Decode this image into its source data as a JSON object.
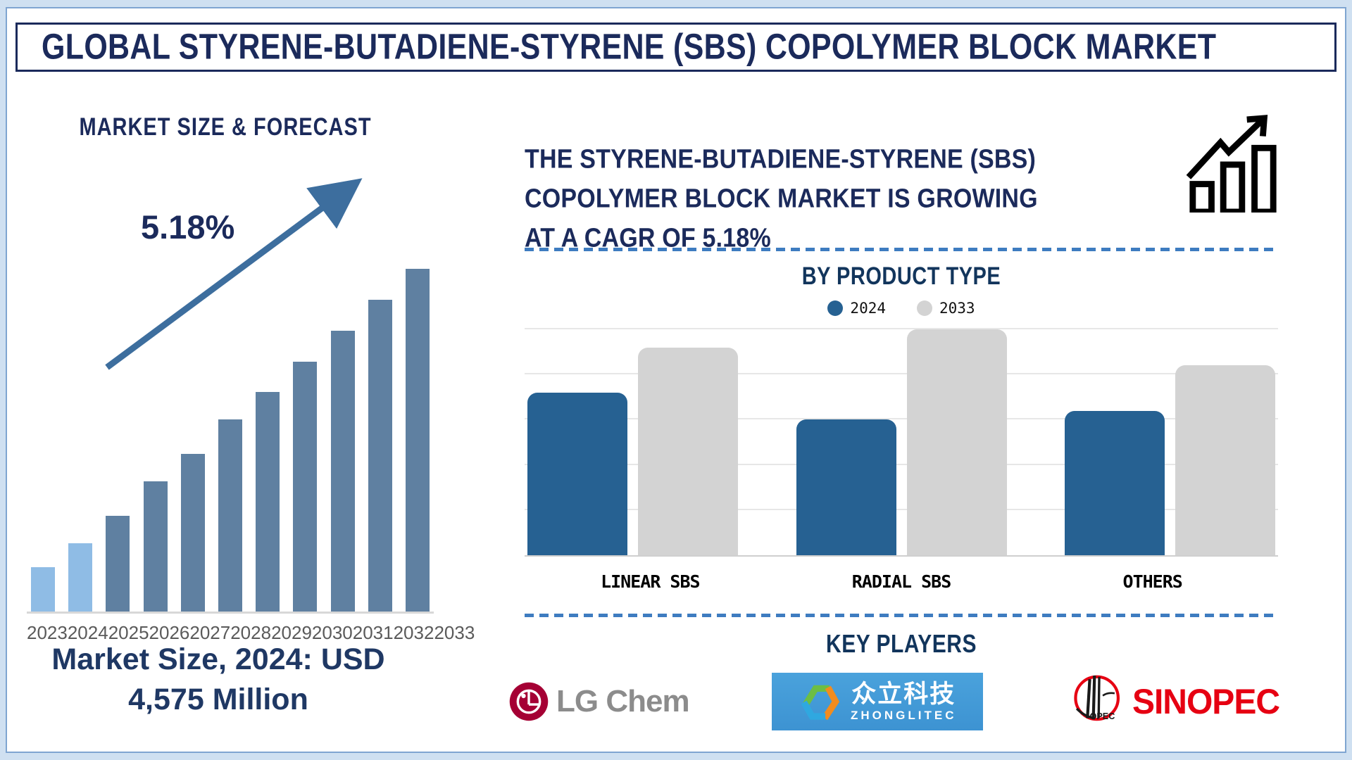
{
  "title": "GLOBAL STYRENE-BUTADIENE-STYRENE (SBS) COPOLYMER BLOCK MARKET",
  "colors": {
    "navy": "#1B2A5B",
    "caption_navy": "#1F3864",
    "light_bar": "#8FBCE5",
    "steel_bar": "#5F80A1",
    "blue_2024": "#266192",
    "gray_2033": "#D3D3D3",
    "arrow": "#3D6E9E",
    "dashed_line": "#3E7CC0",
    "lg_crimson": "#A50034",
    "lg_gray_text": "#8C8C8C",
    "zhonglitec_blue": "#42A0D9",
    "sinopec_red": "#E60012"
  },
  "left_panel": {
    "heading": "MARKET SIZE & FORECAST",
    "cagr_annotation": "5.18%",
    "market_size_caption_line1": "Market Size, 2024: USD",
    "market_size_caption_line2": "4,575 Million"
  },
  "right_panel": {
    "growth_statement_lines": [
      "THE STYRENE-BUTADIENE-STYRENE (SBS)",
      "COPOLYMER BLOCK MARKET IS GROWING",
      "AT A CAGR OF 5.18%"
    ],
    "product_chart_heading": "BY PRODUCT TYPE",
    "key_players": {
      "heading": "KEY PLAYERS",
      "logos": [
        {
          "id": "lg-chem",
          "label": "LG Chem"
        },
        {
          "id": "zhonglitec",
          "label_cn": "众立科技",
          "label_en": "ZHONGLITEC"
        },
        {
          "id": "sinopec",
          "label": "SINOPEC"
        }
      ]
    }
  },
  "chart_data": [
    {
      "id": "market-size-forecast",
      "type": "bar",
      "title": "MARKET SIZE & FORECAST",
      "categories": [
        "2023",
        "2024",
        "2025",
        "2026",
        "2027",
        "2028",
        "2029",
        "2030",
        "2031",
        "2032",
        "2033"
      ],
      "values_relative_pct": [
        13,
        20,
        28,
        38,
        46,
        56,
        64,
        73,
        82,
        91,
        100
      ],
      "bar_colors": [
        "#8FBCE5",
        "#8FBCE5",
        "#5F80A1",
        "#5F80A1",
        "#5F80A1",
        "#5F80A1",
        "#5F80A1",
        "#5F80A1",
        "#5F80A1",
        "#5F80A1",
        "#5F80A1"
      ],
      "xlabel": "",
      "ylabel": "",
      "value_axis_note": "no value axis shown; bar heights are relative (% of tallest 2033 bar)",
      "annotation": "5.18% CAGR trend arrow rising left-to-right",
      "known_point": {
        "year": "2024",
        "value": "USD 4,575 Million"
      },
      "grid": false
    },
    {
      "id": "by-product-type",
      "type": "grouped-bar",
      "title": "BY PRODUCT TYPE",
      "categories": [
        "LINEAR SBS",
        "RADIAL SBS",
        "OTHERS"
      ],
      "series": [
        {
          "name": "2024",
          "color": "#266192",
          "values_relative_pct": [
            72,
            60,
            64
          ]
        },
        {
          "name": "2033",
          "color": "#D3D3D3",
          "values_relative_pct": [
            92,
            100,
            84
          ]
        }
      ],
      "value_axis_note": "no value axis shown; heights relative to plot height (%)",
      "grid": true,
      "legend_position": "top-center"
    }
  ]
}
